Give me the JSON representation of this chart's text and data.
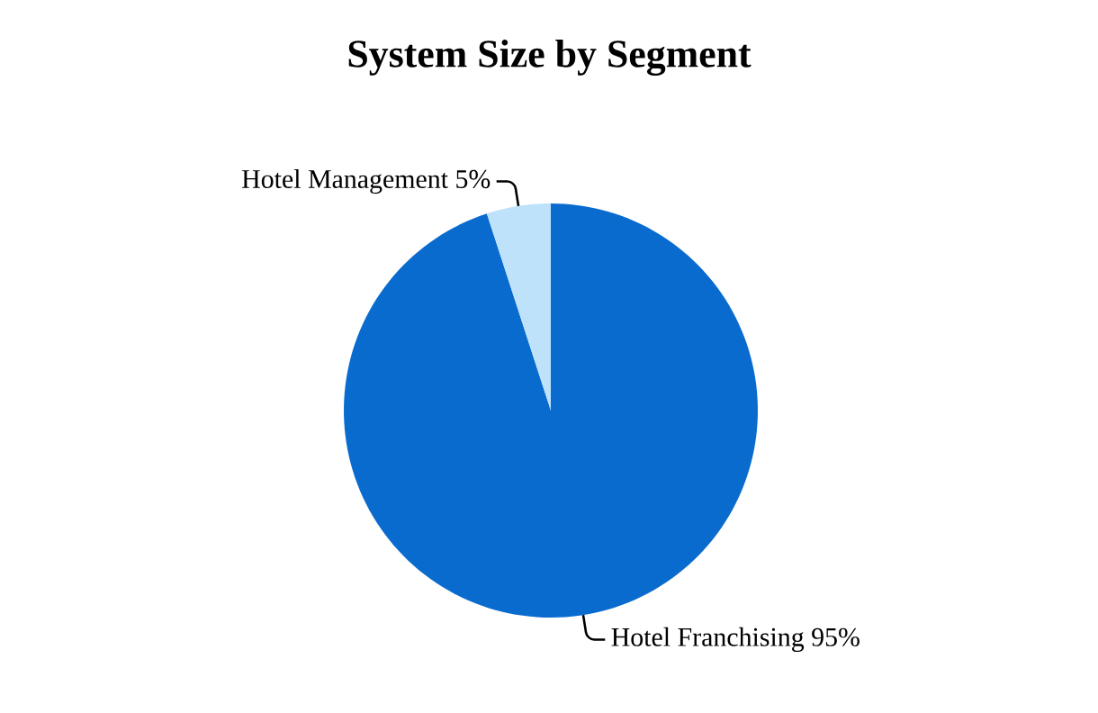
{
  "chart_data": {
    "type": "pie",
    "title": "System Size by Segment",
    "categories": [
      "Hotel Franchising",
      "Hotel Management"
    ],
    "values": [
      95,
      5
    ],
    "value_labels": [
      "95%",
      "5%"
    ],
    "colors": [
      "#0a6bcf",
      "#bfe2fb"
    ]
  }
}
